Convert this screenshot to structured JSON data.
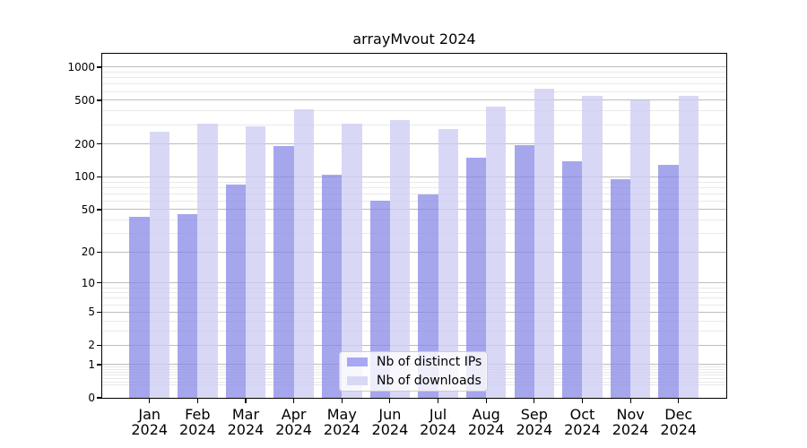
{
  "title": "arrayMvout 2024",
  "chart_data": {
    "type": "bar",
    "title": "arrayMvout 2024",
    "categories": [
      "Jan",
      "Feb",
      "Mar",
      "Apr",
      "May",
      "Jun",
      "Jul",
      "Aug",
      "Sep",
      "Oct",
      "Nov",
      "Dec"
    ],
    "x_tick_year": "2024",
    "series": [
      {
        "name": "Nb of distinct IPs",
        "values": [
          43,
          45,
          85,
          193,
          105,
          61,
          69,
          151,
          194,
          138,
          95,
          129
        ]
      },
      {
        "name": "Nb of downloads",
        "values": [
          260,
          305,
          290,
          412,
          305,
          329,
          272,
          435,
          634,
          548,
          496,
          548
        ]
      }
    ],
    "y_scale": "log10(value+1)",
    "y_ticks": [
      0,
      1,
      2,
      5,
      10,
      20,
      50,
      100,
      200,
      500,
      1000
    ],
    "ylim": [
      0,
      1320
    ],
    "grid": true,
    "legend_position": "lower center"
  },
  "colors": {
    "bar_distinct_ips": "rgba(136,136,231,0.75)",
    "bar_downloads": "rgba(205,205,243,0.78)",
    "legend_swatch_ips": "#a8a8f0",
    "legend_swatch_downloads": "#d8d8f6",
    "grid_major": "#bdbdbd",
    "grid_minor": "#e9e9e9",
    "axis": "#000000",
    "text": "#000000"
  }
}
